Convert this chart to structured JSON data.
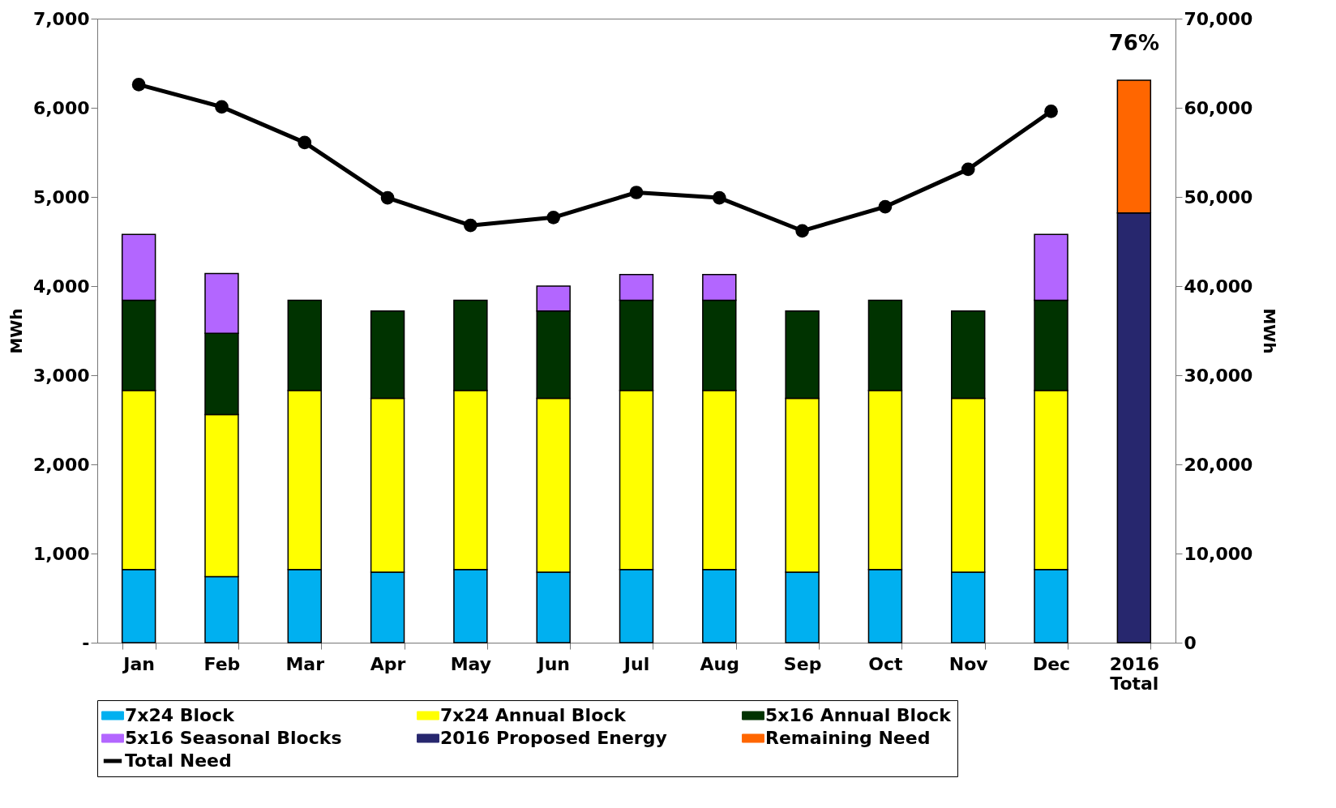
{
  "chart_data": {
    "type": "bar",
    "stacked": true,
    "ylabel": "MWh",
    "y2label": "MWh",
    "categories": [
      "Jan",
      "Feb",
      "Mar",
      "Apr",
      "May",
      "Jun",
      "Jul",
      "Aug",
      "Sep",
      "Oct",
      "Nov",
      "Dec",
      "2016 Total"
    ],
    "series": [
      {
        "name": "7x24 Block",
        "color": "#00b0f0",
        "values": [
          820,
          740,
          820,
          790,
          820,
          790,
          820,
          820,
          790,
          820,
          790,
          820,
          null
        ]
      },
      {
        "name": "7x24 Annual Block",
        "color": "#ffff00",
        "values": [
          2010,
          1820,
          2010,
          1950,
          2010,
          1950,
          2010,
          2010,
          1950,
          2010,
          1950,
          2010,
          null
        ]
      },
      {
        "name": "5x16 Annual Block",
        "color": "#003300",
        "values": [
          1010,
          910,
          1010,
          980,
          1010,
          980,
          1010,
          1010,
          980,
          1010,
          980,
          1010,
          null
        ]
      },
      {
        "name": "5x16 Seasonal Blocks",
        "color": "#b366ff",
        "values": [
          740,
          670,
          null,
          null,
          null,
          280,
          290,
          290,
          null,
          null,
          null,
          740,
          null
        ]
      },
      {
        "name": "2016 Proposed Energy",
        "color": "#27276e",
        "axis": "y2",
        "values": [
          null,
          null,
          null,
          null,
          null,
          null,
          null,
          null,
          null,
          null,
          null,
          null,
          48200
        ]
      },
      {
        "name": "Remaining Need",
        "color": "#ff6600",
        "axis": "y2",
        "values": [
          null,
          null,
          null,
          null,
          null,
          null,
          null,
          null,
          null,
          null,
          null,
          null,
          14900
        ]
      },
      {
        "name": "Total Need",
        "type": "line",
        "color": "#000000",
        "marker": "circle",
        "values": [
          6260,
          6010,
          5610,
          4990,
          4680,
          4770,
          5050,
          4990,
          4620,
          4890,
          5310,
          5960,
          null
        ]
      }
    ],
    "ylim": [
      0,
      7000
    ],
    "yticks": [
      {
        "value": 0,
        "label": "-"
      },
      {
        "value": 1000,
        "label": "1,000"
      },
      {
        "value": 2000,
        "label": "2,000"
      },
      {
        "value": 3000,
        "label": "3,000"
      },
      {
        "value": 4000,
        "label": "4,000"
      },
      {
        "value": 5000,
        "label": "5,000"
      },
      {
        "value": 6000,
        "label": "6,000"
      },
      {
        "value": 7000,
        "label": "7,000"
      }
    ],
    "y2lim": [
      0,
      70000
    ],
    "y2ticks": [
      {
        "value": 0,
        "label": "0"
      },
      {
        "value": 10000,
        "label": "10,000"
      },
      {
        "value": 20000,
        "label": "20,000"
      },
      {
        "value": 30000,
        "label": "30,000"
      },
      {
        "value": 40000,
        "label": "40,000"
      },
      {
        "value": 50000,
        "label": "50,000"
      },
      {
        "value": 60000,
        "label": "60,000"
      },
      {
        "value": 70000,
        "label": "70,000"
      }
    ],
    "annotations": [
      "76%"
    ],
    "grid": false,
    "legend": "bottom"
  }
}
